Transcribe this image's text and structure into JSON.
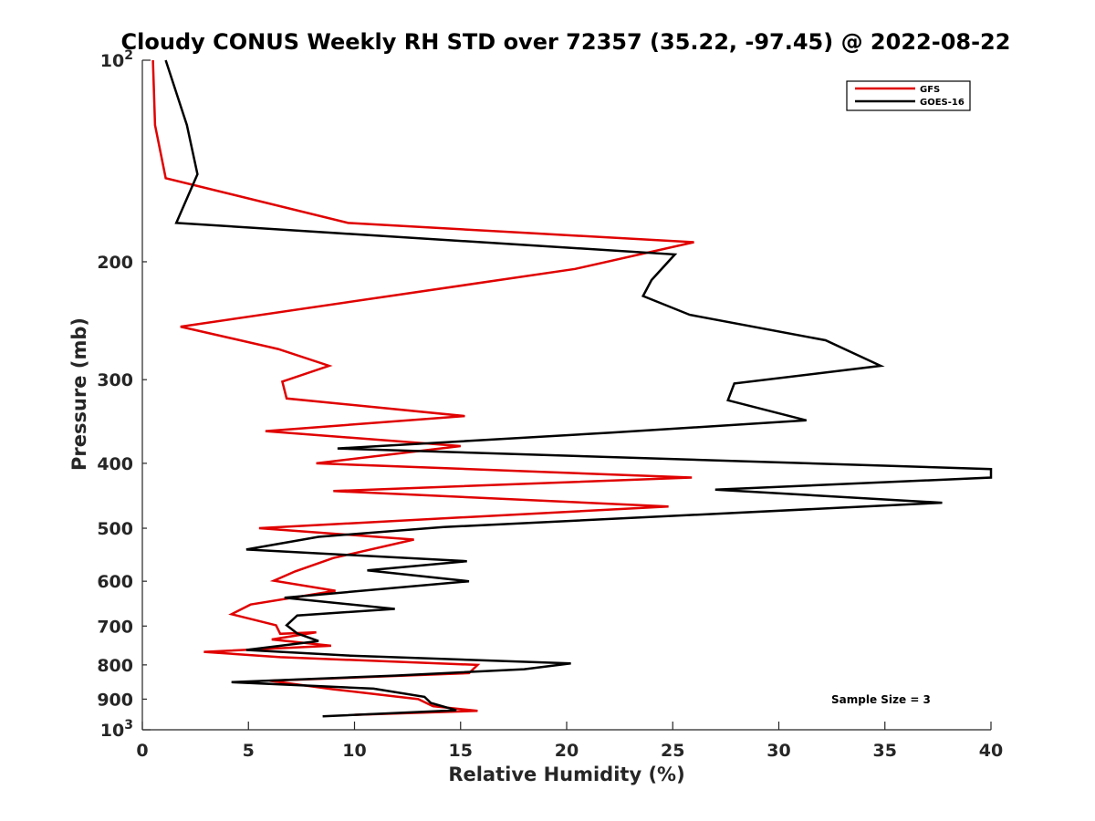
{
  "chart_data": {
    "type": "line",
    "title": "Cloudy CONUS Weekly RH STD over 72357 (35.22, -97.45) @ 2022-08-22",
    "xlabel": "Relative Humidity (%)",
    "ylabel": "Pressure (mb)",
    "xlim": [
      0,
      40
    ],
    "ylim": [
      100,
      1000
    ],
    "y_scale": "log",
    "y_reversed": true,
    "x_ticks": [
      "0",
      "5",
      "10",
      "15",
      "20",
      "25",
      "30",
      "35",
      "40"
    ],
    "y_ticks": [
      {
        "value": 100,
        "base": "10",
        "exp": "2"
      },
      {
        "value": 200,
        "label": "200"
      },
      {
        "value": 300,
        "label": "300"
      },
      {
        "value": 400,
        "label": "400"
      },
      {
        "value": 500,
        "label": "500"
      },
      {
        "value": 600,
        "label": "600"
      },
      {
        "value": 700,
        "label": "700"
      },
      {
        "value": 800,
        "label": "800"
      },
      {
        "value": 900,
        "label": "900"
      },
      {
        "value": 1000,
        "base": "10",
        "exp": "3"
      }
    ],
    "legend_position": "top-right",
    "grid": false,
    "annotation": "Sample Size = 3",
    "series": [
      {
        "name": "GFS",
        "color": "#e00000",
        "points": [
          [
            0.5,
            100
          ],
          [
            0.6,
            125
          ],
          [
            1.1,
            150
          ],
          [
            9.7,
            175
          ],
          [
            26.0,
            187
          ],
          [
            20.4,
            205
          ],
          [
            1.8,
            250
          ],
          [
            6.4,
            270
          ],
          [
            8.8,
            286
          ],
          [
            6.6,
            302
          ],
          [
            6.8,
            320
          ],
          [
            15.2,
            340
          ],
          [
            5.8,
            358
          ],
          [
            15.0,
            377
          ],
          [
            8.2,
            400
          ],
          [
            25.9,
            420
          ],
          [
            9.0,
            440
          ],
          [
            24.8,
            464
          ],
          [
            5.5,
            500
          ],
          [
            12.8,
            520
          ],
          [
            9.0,
            554
          ],
          [
            7.2,
            580
          ],
          [
            6.2,
            599
          ],
          [
            9.1,
            620
          ],
          [
            5.1,
            650
          ],
          [
            4.2,
            672
          ],
          [
            6.3,
            698
          ],
          [
            6.5,
            719
          ],
          [
            8.2,
            715
          ],
          [
            6.1,
            733
          ],
          [
            8.9,
            749
          ],
          [
            2.9,
            765
          ],
          [
            6.5,
            779
          ],
          [
            15.8,
            800
          ],
          [
            15.4,
            823
          ],
          [
            6.0,
            845
          ],
          [
            9.0,
            870
          ],
          [
            13.0,
            900
          ],
          [
            13.7,
            922
          ],
          [
            15.8,
            937
          ],
          [
            10.0,
            950
          ]
        ]
      },
      {
        "name": "GOES-16",
        "color": "#000000",
        "points": [
          [
            1.1,
            100
          ],
          [
            2.1,
            125
          ],
          [
            2.6,
            148
          ],
          [
            1.6,
            175
          ],
          [
            25.1,
            195
          ],
          [
            24.0,
            213
          ],
          [
            23.6,
            225
          ],
          [
            25.8,
            240
          ],
          [
            32.2,
            262
          ],
          [
            34.8,
            286
          ],
          [
            27.9,
            304
          ],
          [
            27.6,
            322
          ],
          [
            31.3,
            345
          ],
          [
            22.1,
            360
          ],
          [
            9.2,
            380
          ],
          [
            40.0,
            408
          ],
          [
            40.0,
            420
          ],
          [
            27.0,
            438
          ],
          [
            37.7,
            458
          ],
          [
            14.2,
            498
          ],
          [
            8.3,
            515
          ],
          [
            4.9,
            538
          ],
          [
            15.3,
            560
          ],
          [
            10.6,
            578
          ],
          [
            15.4,
            600
          ],
          [
            6.7,
            635
          ],
          [
            11.9,
            660
          ],
          [
            7.3,
            675
          ],
          [
            6.8,
            698
          ],
          [
            7.3,
            718
          ],
          [
            8.3,
            737
          ],
          [
            4.9,
            760
          ],
          [
            9.8,
            775
          ],
          [
            20.2,
            796
          ],
          [
            18.0,
            812
          ],
          [
            11.9,
            830
          ],
          [
            4.2,
            849
          ],
          [
            10.9,
            868
          ],
          [
            13.3,
            893
          ],
          [
            13.6,
            912
          ],
          [
            14.8,
            935
          ],
          [
            8.5,
            955
          ]
        ]
      }
    ]
  }
}
